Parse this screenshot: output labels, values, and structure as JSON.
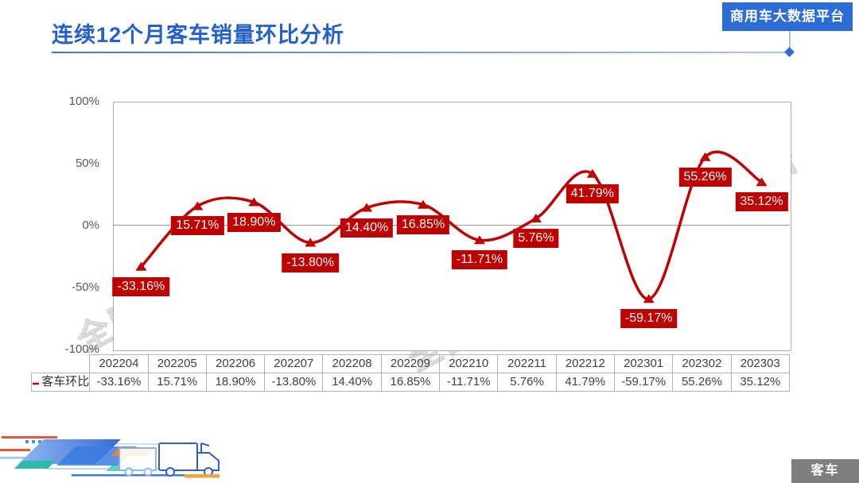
{
  "header": {
    "title": "连续12个月客车销量环比分析",
    "badge": "商用车大数据平台"
  },
  "watermark": {
    "text": "全国商用车行业大数据平台"
  },
  "legend": {
    "series_label": "客车环比"
  },
  "footer": {
    "corner_label": "客车"
  },
  "colors": {
    "title_blue": "#2460ce",
    "badge_blue": "#2d6cd4",
    "series_red": "#c00000",
    "axis_text": "#595959",
    "table_border": "#b3b3b3",
    "footer_gray": "#7f7f7f"
  },
  "chart_data": {
    "type": "line",
    "title": "连续12个月客车销量环比分析",
    "categories": [
      "202204",
      "202205",
      "202206",
      "202207",
      "202208",
      "202209",
      "202210",
      "202211",
      "202212",
      "202301",
      "202302",
      "202303"
    ],
    "series": [
      {
        "name": "客车环比",
        "values": [
          -33.16,
          15.71,
          18.9,
          -13.8,
          14.4,
          16.85,
          -11.71,
          5.76,
          41.79,
          -59.17,
          55.26,
          35.12
        ],
        "labels": [
          "-33.16%",
          "15.71%",
          "18.90%",
          "-13.80%",
          "14.40%",
          "16.85%",
          "-11.71%",
          "5.76%",
          "41.79%",
          "-59.17%",
          "55.26%",
          "35.12%"
        ]
      }
    ],
    "xlabel": "",
    "ylabel": "",
    "ylim": [
      -100,
      100
    ],
    "ytick_labels": [
      "100%",
      "50%",
      "0%",
      "-50%",
      "-100%"
    ],
    "grid": "zero-line-only",
    "legend_position": "table-left",
    "line_color": "#c00000",
    "marker": "triangle-up",
    "label_bg": "#c00000",
    "label_text_color": "#ffffff"
  }
}
